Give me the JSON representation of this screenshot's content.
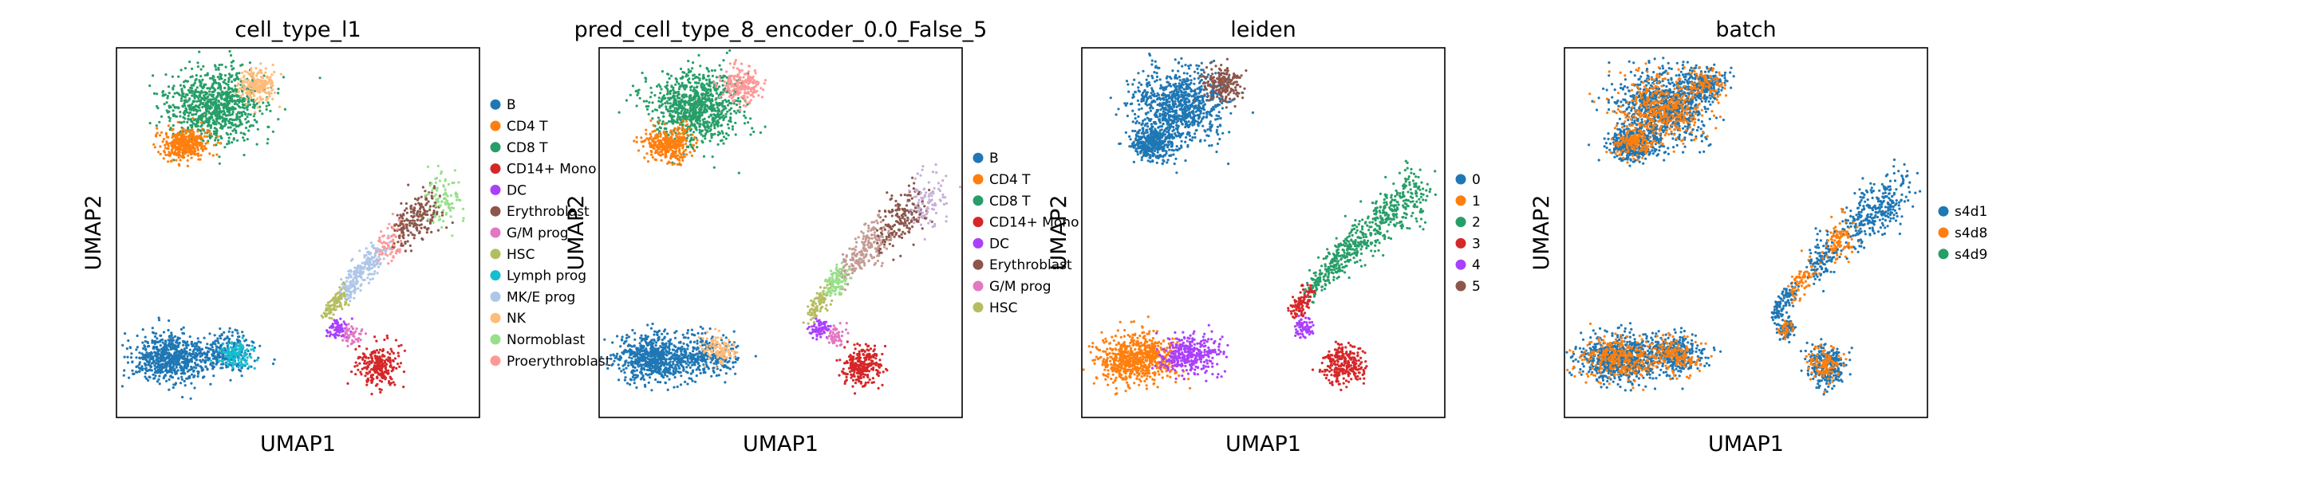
{
  "chart_data": [
    {
      "type": "scatter",
      "title": "cell_type_l1",
      "xlabel": "UMAP1",
      "ylabel": "UMAP2",
      "grid": false,
      "ticks": false,
      "legend_position": "right, outside plot",
      "legend": [
        {
          "label": "B",
          "color": "#1f77b4"
        },
        {
          "label": "CD4 T",
          "color": "#ff7f0e"
        },
        {
          "label": "CD8 T",
          "color": "#279e68"
        },
        {
          "label": "CD14+ Mono",
          "color": "#d62728"
        },
        {
          "label": "DC",
          "color": "#aa40fc"
        },
        {
          "label": "Erythroblast",
          "color": "#8c564b"
        },
        {
          "label": "G/M prog",
          "color": "#e377c2"
        },
        {
          "label": "HSC",
          "color": "#b5bd61"
        },
        {
          "label": "Lymph prog",
          "color": "#17becf"
        },
        {
          "label": "MK/E prog",
          "color": "#aec7e8"
        },
        {
          "label": "NK",
          "color": "#ffbb78"
        },
        {
          "label": "Normoblast",
          "color": "#98df8a"
        },
        {
          "label": "Proerythroblast",
          "color": "#ff9896"
        }
      ]
    },
    {
      "type": "scatter",
      "title": "pred_cell_type_8_encoder_0.0_False_5",
      "xlabel": "UMAP1",
      "ylabel": "UMAP2",
      "grid": false,
      "ticks": false,
      "legend_position": "right, outside plot",
      "legend": [
        {
          "label": "B",
          "color": "#1f77b4"
        },
        {
          "label": "CD4 T",
          "color": "#ff7f0e"
        },
        {
          "label": "CD8 T",
          "color": "#279e68"
        },
        {
          "label": "CD14+ Mono",
          "color": "#d62728"
        },
        {
          "label": "DC",
          "color": "#aa40fc"
        },
        {
          "label": "Erythroblast",
          "color": "#8c564b"
        },
        {
          "label": "G/M prog",
          "color": "#e377c2"
        },
        {
          "label": "HSC",
          "color": "#b5bd61"
        }
      ]
    },
    {
      "type": "scatter",
      "title": "leiden",
      "xlabel": "UMAP1",
      "ylabel": "UMAP2",
      "grid": false,
      "ticks": false,
      "legend_position": "right, outside plot",
      "legend": [
        {
          "label": "0",
          "color": "#1f77b4"
        },
        {
          "label": "1",
          "color": "#ff7f0e"
        },
        {
          "label": "2",
          "color": "#279e68"
        },
        {
          "label": "3",
          "color": "#d62728"
        },
        {
          "label": "4",
          "color": "#aa40fc"
        },
        {
          "label": "5",
          "color": "#8c564b"
        }
      ]
    },
    {
      "type": "scatter",
      "title": "batch",
      "xlabel": "UMAP1",
      "ylabel": "UMAP2",
      "grid": false,
      "ticks": false,
      "legend_position": "right, outside plot",
      "legend": [
        {
          "label": "s4d1",
          "color": "#1f77b4"
        },
        {
          "label": "s4d8",
          "color": "#ff7f0e"
        },
        {
          "label": "s4d9",
          "color": "#279e68"
        }
      ]
    }
  ]
}
